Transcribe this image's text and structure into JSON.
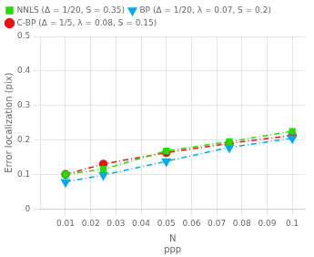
{
  "chart_data": {
    "type": "line",
    "x": [
      0.01,
      0.025,
      0.05,
      0.075,
      0.1
    ],
    "series": [
      {
        "name": "NNLS (Δ = 1/20, S = 0.35)",
        "color": "#22dd00",
        "marker": "square",
        "line_style": "dashdot",
        "values": [
          0.1,
          0.115,
          0.168,
          0.195,
          0.225
        ]
      },
      {
        "name": "BP (Δ = 1/20, λ = 0.07, S = 0.2)",
        "color": "#00aaee",
        "marker": "triangle_down",
        "line_style": "dashdot",
        "values": [
          0.078,
          0.098,
          0.138,
          0.178,
          0.205
        ]
      },
      {
        "name": "C-BP (Δ = 1/5, λ = 0.08, S = 0.15)",
        "color": "#ee1111",
        "marker": "circle",
        "line_style": "dashdot",
        "values": [
          0.1,
          0.13,
          0.163,
          0.19,
          0.213
        ]
      }
    ],
    "xlabel": [
      "N",
      "ppp"
    ],
    "ylabel": "Error localization (pix)",
    "xlim": [
      0.0,
      0.105
    ],
    "ylim": [
      0.0,
      0.5
    ],
    "xticks": [
      0.01,
      0.02,
      0.03,
      0.04,
      0.05,
      0.06,
      0.07,
      0.08,
      0.09,
      0.1
    ],
    "yticks": [
      0.0,
      0.1,
      0.2,
      0.3,
      0.4,
      0.5
    ],
    "grid": true,
    "legend": "upper left"
  }
}
